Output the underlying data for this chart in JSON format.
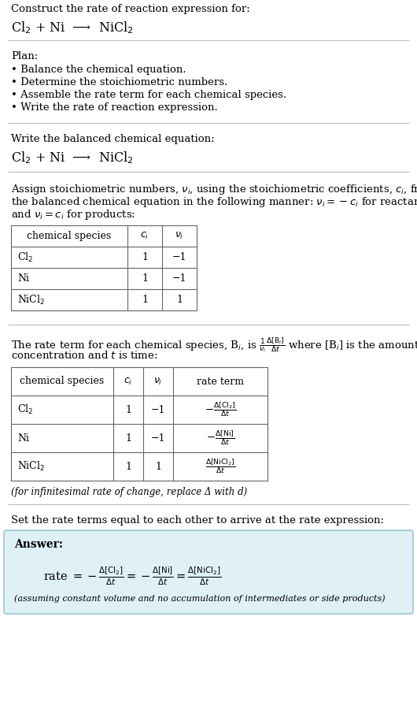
{
  "title_line1": "Construct the rate of reaction expression for:",
  "title_line2": "Cl$_2$ + Ni  ⟶  NiCl$_2$",
  "plan_header": "Plan:",
  "plan_bullets": [
    "• Balance the chemical equation.",
    "• Determine the stoichiometric numbers.",
    "• Assemble the rate term for each chemical species.",
    "• Write the rate of reaction expression."
  ],
  "balanced_header": "Write the balanced chemical equation:",
  "balanced_eq": "Cl$_2$ + Ni  ⟶  NiCl$_2$",
  "stoich_intro_lines": [
    "Assign stoichiometric numbers, $\\nu_i$, using the stoichiometric coefficients, $c_i$, from",
    "the balanced chemical equation in the following manner: $\\nu_i = -c_i$ for reactants",
    "and $\\nu_i = c_i$ for products:"
  ],
  "table1_headers": [
    "chemical species",
    "$c_i$",
    "$\\nu_i$"
  ],
  "table1_rows": [
    [
      "Cl$_2$",
      "1",
      "−1"
    ],
    [
      "Ni",
      "1",
      "−1"
    ],
    [
      "NiCl$_2$",
      "1",
      "1"
    ]
  ],
  "rate_term_intro_lines": [
    "The rate term for each chemical species, B$_i$, is $\\frac{1}{\\nu_i}\\frac{\\Delta[\\mathrm{B}_i]}{\\Delta t}$ where [B$_i$] is the amount",
    "concentration and $t$ is time:"
  ],
  "table2_headers": [
    "chemical species",
    "$c_i$",
    "$\\nu_i$",
    "rate term"
  ],
  "table2_rows": [
    [
      "Cl$_2$",
      "1",
      "−1",
      "$-\\frac{\\Delta[\\mathrm{Cl_2}]}{\\Delta t}$"
    ],
    [
      "Ni",
      "1",
      "−1",
      "$-\\frac{\\Delta[\\mathrm{Ni}]}{\\Delta t}$"
    ],
    [
      "NiCl$_2$",
      "1",
      "1",
      "$\\frac{\\Delta[\\mathrm{NiCl_2}]}{\\Delta t}$"
    ]
  ],
  "infinitesimal_note": "(for infinitesimal rate of change, replace Δ with d)",
  "set_rate_text": "Set the rate terms equal to each other to arrive at the rate expression:",
  "answer_box_color": "#dff0f7",
  "answer_box_border": "#90bfd0",
  "answer_label": "Answer:",
  "answer_rate_eq": "rate $= -\\frac{\\Delta[\\mathrm{Cl_2}]}{\\Delta t} = -\\frac{\\Delta[\\mathrm{Ni}]}{\\Delta t} = \\frac{\\Delta[\\mathrm{NiCl_2}]}{\\Delta t}$",
  "answer_note": "(assuming constant volume and no accumulation of intermediates or side products)",
  "bg_color": "#ffffff",
  "text_color": "#000000",
  "sep_color": "#bbbbbb",
  "table_color": "#666666",
  "font_size": 9.5
}
